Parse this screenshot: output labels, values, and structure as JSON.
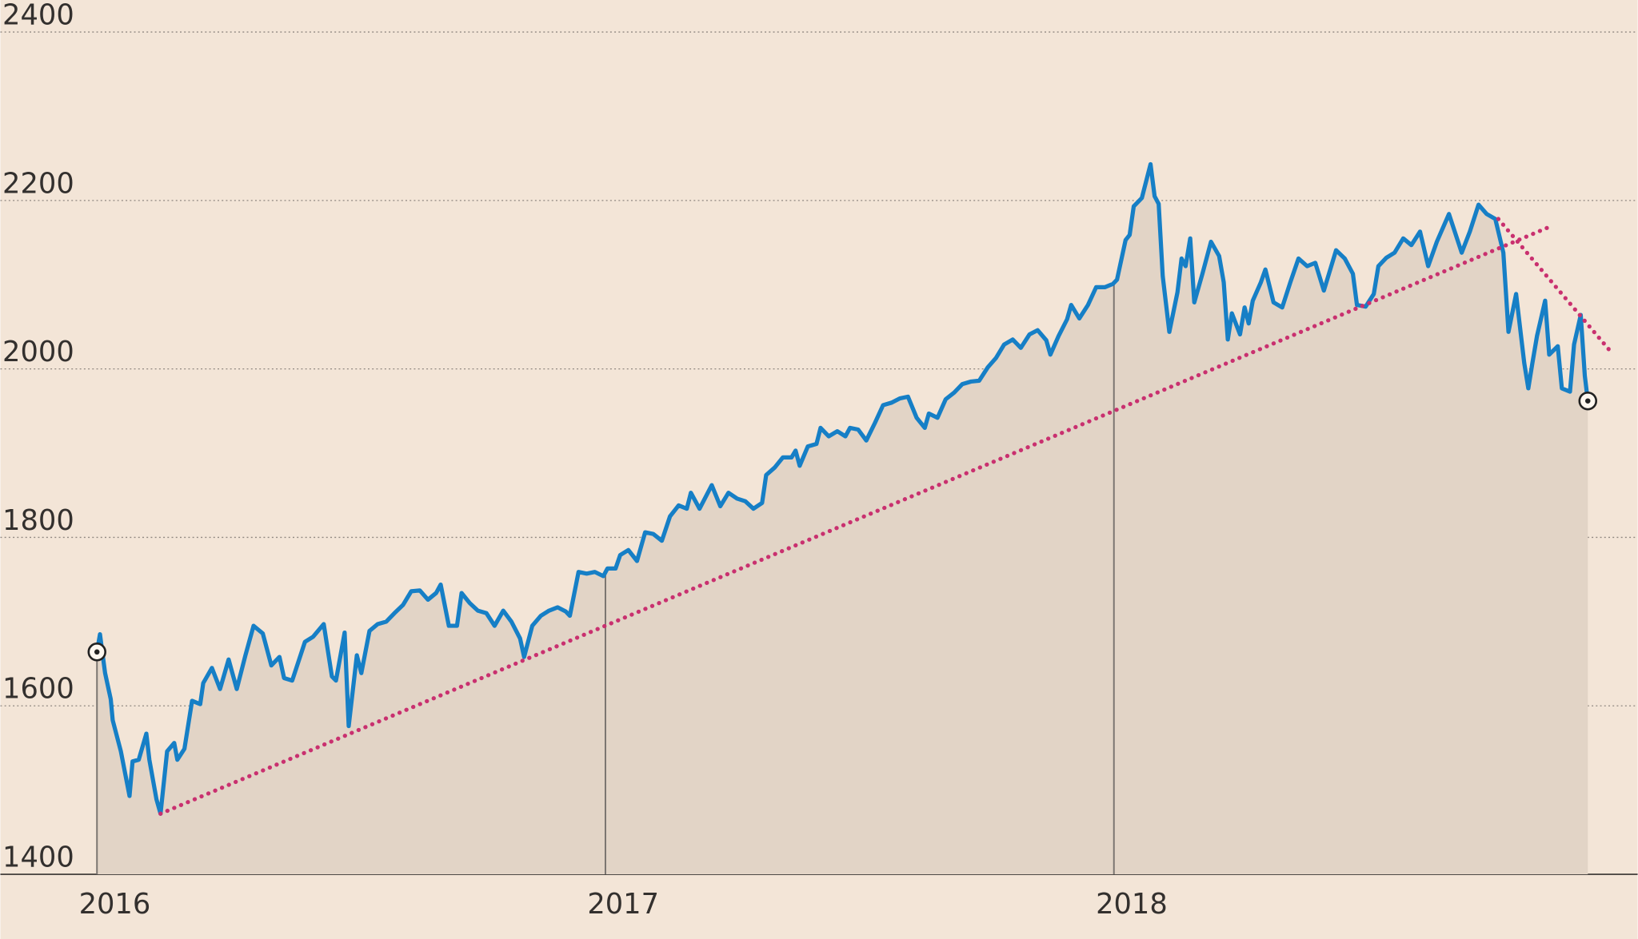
{
  "chart_data": {
    "type": "line",
    "xlim": [
      2015.81,
      2019.03
    ],
    "ylim": [
      1400,
      2438
    ],
    "xticks": [
      2016,
      2017,
      2018
    ],
    "yticks": [
      1400,
      1600,
      1800,
      2000,
      2200,
      2400
    ],
    "grid": true,
    "area": true,
    "area_color": "#e2d4c6",
    "background": "#f3e5d7",
    "end_markers": true,
    "x": [
      2016.0,
      2016.006,
      2016.016,
      2016.027,
      2016.031,
      2016.047,
      2016.064,
      2016.07,
      2016.082,
      2016.097,
      2016.103,
      2016.117,
      2016.125,
      2016.138,
      2016.152,
      2016.158,
      2016.172,
      2016.187,
      2016.203,
      2016.209,
      2016.226,
      2016.242,
      2016.259,
      2016.275,
      2016.292,
      2016.308,
      2016.326,
      2016.343,
      2016.359,
      2016.368,
      2016.384,
      2016.409,
      2016.425,
      2016.446,
      2016.462,
      2016.47,
      2016.487,
      2016.495,
      2016.511,
      2016.52,
      2016.536,
      2016.552,
      2016.569,
      2016.585,
      2016.602,
      2016.618,
      2016.635,
      2016.651,
      2016.667,
      2016.676,
      2016.692,
      2016.708,
      2016.717,
      2016.733,
      2016.749,
      2016.766,
      2016.782,
      2016.799,
      2016.815,
      2016.832,
      2016.84,
      2016.856,
      2016.873,
      2016.889,
      2016.906,
      2016.922,
      2016.93,
      2016.947,
      2016.963,
      2016.979,
      2016.996,
      2017.004,
      2017.02,
      2017.029,
      2017.045,
      2017.062,
      2017.078,
      2017.094,
      2017.111,
      2017.127,
      2017.144,
      2017.16,
      2017.168,
      2017.185,
      2017.209,
      2017.226,
      2017.242,
      2017.259,
      2017.275,
      2017.291,
      2017.308,
      2017.316,
      2017.333,
      2017.349,
      2017.366,
      2017.374,
      2017.382,
      2017.398,
      2017.415,
      2017.423,
      2017.439,
      2017.456,
      2017.472,
      2017.481,
      2017.497,
      2017.513,
      2017.53,
      2017.546,
      2017.563,
      2017.579,
      2017.595,
      2017.612,
      2017.628,
      2017.636,
      2017.653,
      2017.669,
      2017.686,
      2017.702,
      2017.719,
      2017.735,
      2017.752,
      2017.768,
      2017.784,
      2017.801,
      2017.817,
      2017.834,
      2017.85,
      2017.867,
      2017.875,
      2017.891,
      2017.908,
      2017.916,
      2017.932,
      2017.949,
      2017.965,
      2017.982,
      2017.998,
      2018.006,
      2018.023,
      2018.031,
      2018.039,
      2018.055,
      2018.072,
      2018.08,
      2018.088,
      2018.096,
      2018.109,
      2018.125,
      2018.133,
      2018.141,
      2018.15,
      2018.158,
      2018.174,
      2018.191,
      2018.207,
      2018.216,
      2018.224,
      2018.232,
      2018.248,
      2018.257,
      2018.265,
      2018.273,
      2018.289,
      2018.298,
      2018.314,
      2018.331,
      2018.347,
      2018.363,
      2018.38,
      2018.396,
      2018.413,
      2018.437,
      2018.454,
      2018.47,
      2018.478,
      2018.495,
      2018.511,
      2018.52,
      2018.536,
      2018.552,
      2018.569,
      2018.585,
      2018.602,
      2018.618,
      2018.635,
      2018.659,
      2018.684,
      2018.7,
      2018.717,
      2018.733,
      2018.75,
      2018.766,
      2018.776,
      2018.791,
      2018.807,
      2018.815,
      2018.823,
      2018.832,
      2018.848,
      2018.856,
      2018.873,
      2018.881,
      2018.897,
      2018.905,
      2018.918,
      2018.926,
      2018.932
    ],
    "series": [
      {
        "color": "#167fc6",
        "values": [
          1664,
          1685,
          1639,
          1608,
          1583,
          1546,
          1493,
          1534,
          1536,
          1567,
          1536,
          1489,
          1472,
          1546,
          1556,
          1536,
          1549,
          1606,
          1602,
          1627,
          1645,
          1620,
          1655,
          1620,
          1660,
          1695,
          1686,
          1648,
          1658,
          1633,
          1630,
          1676,
          1682,
          1697,
          1635,
          1630,
          1687,
          1576,
          1660,
          1639,
          1689,
          1697,
          1700,
          1710,
          1720,
          1736,
          1737,
          1726,
          1734,
          1744,
          1695,
          1695,
          1734,
          1722,
          1713,
          1710,
          1695,
          1713,
          1700,
          1680,
          1658,
          1695,
          1707,
          1713,
          1717,
          1712,
          1707,
          1759,
          1757,
          1759,
          1754,
          1763,
          1763,
          1779,
          1785,
          1772,
          1806,
          1804,
          1796,
          1825,
          1838,
          1834,
          1853,
          1834,
          1862,
          1837,
          1853,
          1846,
          1843,
          1834,
          1841,
          1874,
          1883,
          1895,
          1895,
          1903,
          1885,
          1908,
          1911,
          1930,
          1920,
          1926,
          1920,
          1930,
          1928,
          1915,
          1936,
          1957,
          1960,
          1965,
          1967,
          1942,
          1930,
          1947,
          1942,
          1964,
          1972,
          1982,
          1985,
          1986,
          2002,
          2013,
          2029,
          2035,
          2025,
          2041,
          2046,
          2034,
          2017,
          2039,
          2059,
          2076,
          2060,
          2076,
          2097,
          2097,
          2101,
          2106,
          2153,
          2159,
          2193,
          2203,
          2243,
          2205,
          2196,
          2110,
          2044,
          2091,
          2131,
          2122,
          2155,
          2079,
          2113,
          2151,
          2134,
          2103,
          2035,
          2066,
          2041,
          2073,
          2054,
          2081,
          2103,
          2118,
          2079,
          2073,
          2103,
          2131,
          2122,
          2126,
          2093,
          2141,
          2131,
          2113,
          2076,
          2074,
          2089,
          2122,
          2132,
          2138,
          2155,
          2147,
          2163,
          2122,
          2151,
          2184,
          2138,
          2163,
          2195,
          2184,
          2178,
          2138,
          2044,
          2089,
          2007,
          1977,
          2007,
          2039,
          2081,
          2017,
          2027,
          1977,
          1973,
          2029,
          2064,
          1992,
          1962
        ]
      }
    ],
    "trend_color": "#c9306f",
    "trend_lines": [
      {
        "x": [
          2016.125,
          2018.858
        ],
        "values": [
          1472,
          2169
        ]
      },
      {
        "x": [
          2018.756,
          2018.975
        ],
        "values": [
          2178,
          2022
        ]
      }
    ]
  }
}
